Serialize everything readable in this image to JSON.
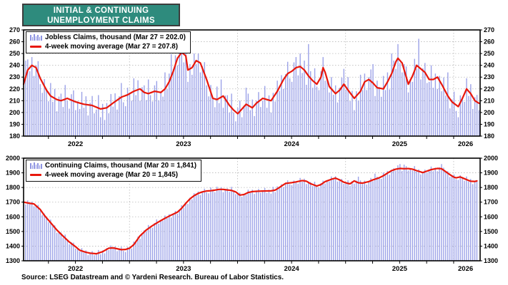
{
  "title": {
    "line1": "INITIAL & CONTINUING",
    "line2": "UNEMPLOYMENT CLAIMS"
  },
  "source": "Source: LSEG Datastream and © Yardeni Research. Bureau of Labor Statistics.",
  "colors": {
    "bar": "#9ca2e8",
    "legend_bar_icon": "#8f95e2",
    "ma_line": "#e8180c",
    "title_bg": "#2e8b7d",
    "title_text": "#ffffff",
    "grid": "#b8b8b8",
    "axis": "#000000"
  },
  "chart_data": [
    {
      "id": "initial-claims",
      "type": "bar+line",
      "legend": [
        "Jobless Claims, thousand (Mar 27 = 202.0)",
        "4-week moving average (Mar 27 = 207.8)"
      ],
      "ylim": [
        180,
        270
      ],
      "yticks": [
        180,
        190,
        200,
        210,
        220,
        230,
        240,
        250,
        260,
        270
      ],
      "x_range": [
        2022.02,
        2026.245
      ],
      "x_last": 2026.235,
      "grid_years": [
        2023,
        2024,
        2025,
        2026
      ],
      "year_ticks": [
        {
          "label": "2022",
          "t": 2022.5
        },
        {
          "label": "2023",
          "t": 2023.5
        },
        {
          "label": "2024",
          "t": 2024.5
        },
        {
          "label": "2025",
          "t": 2025.5
        },
        {
          "label": "2026",
          "t": 2026.11
        }
      ],
      "n_weeks": 220,
      "last_bar": 202.0,
      "last_ma": 207.8,
      "ma_points": [
        [
          0,
          224
        ],
        [
          2,
          236
        ],
        [
          4,
          240
        ],
        [
          6,
          238
        ],
        [
          8,
          229
        ],
        [
          11,
          219
        ],
        [
          13,
          214
        ],
        [
          16,
          211
        ],
        [
          18,
          210
        ],
        [
          21,
          212
        ],
        [
          25,
          209
        ],
        [
          29,
          207
        ],
        [
          33,
          206
        ],
        [
          37,
          203
        ],
        [
          40,
          204
        ],
        [
          43,
          208
        ],
        [
          47,
          213
        ],
        [
          50,
          215
        ],
        [
          53,
          218
        ],
        [
          56,
          220
        ],
        [
          58,
          217
        ],
        [
          60,
          216
        ],
        [
          63,
          218
        ],
        [
          66,
          217
        ],
        [
          68,
          220
        ],
        [
          70,
          226
        ],
        [
          72,
          235
        ],
        [
          74,
          246
        ],
        [
          76,
          251
        ],
        [
          78,
          248
        ],
        [
          79,
          236
        ],
        [
          81,
          238
        ],
        [
          83,
          244
        ],
        [
          85,
          242
        ],
        [
          88,
          228
        ],
        [
          91,
          212
        ],
        [
          93,
          211
        ],
        [
          96,
          214
        ],
        [
          99,
          206
        ],
        [
          101,
          202
        ],
        [
          103,
          199
        ],
        [
          105,
          203
        ],
        [
          107,
          207
        ],
        [
          110,
          204
        ],
        [
          112,
          208
        ],
        [
          115,
          212
        ],
        [
          117,
          211
        ],
        [
          119,
          210
        ],
        [
          122,
          218
        ],
        [
          125,
          228
        ],
        [
          127,
          233
        ],
        [
          129,
          235
        ],
        [
          131,
          238
        ],
        [
          133,
          239
        ],
        [
          135,
          236
        ],
        [
          137,
          231
        ],
        [
          139,
          227
        ],
        [
          141,
          224
        ],
        [
          143,
          230
        ],
        [
          144,
          238
        ],
        [
          145,
          234
        ],
        [
          147,
          222
        ],
        [
          150,
          216
        ],
        [
          152,
          219
        ],
        [
          154,
          224
        ],
        [
          156,
          219
        ],
        [
          159,
          212
        ],
        [
          162,
          218
        ],
        [
          164,
          226
        ],
        [
          166,
          228
        ],
        [
          168,
          225
        ],
        [
          170,
          221
        ],
        [
          173,
          220
        ],
        [
          175,
          226
        ],
        [
          177,
          233
        ],
        [
          179,
          243
        ],
        [
          180,
          246
        ],
        [
          182,
          242
        ],
        [
          185,
          224
        ],
        [
          187,
          231
        ],
        [
          189,
          240
        ],
        [
          191,
          237
        ],
        [
          193,
          234
        ],
        [
          195,
          228
        ],
        [
          197,
          228
        ],
        [
          199,
          230
        ],
        [
          201,
          224
        ],
        [
          204,
          214
        ],
        [
          206,
          209
        ],
        [
          209,
          205
        ],
        [
          211,
          212
        ],
        [
          213,
          220
        ],
        [
          215,
          216
        ],
        [
          217,
          210
        ],
        [
          219,
          207.8
        ]
      ],
      "noise": [
        4,
        -6,
        9,
        -3,
        7,
        -8,
        2,
        10,
        -5,
        -9,
        6,
        1,
        -7,
        11,
        -4,
        8,
        -10,
        3,
        6,
        -6,
        12,
        -2,
        -8,
        5,
        9,
        -7,
        1,
        -5,
        10,
        -3,
        7,
        -9,
        2,
        8,
        -6,
        -2,
        11,
        -7,
        4,
        -10
      ],
      "spikes": {
        "0": 20,
        "1": 14,
        "47": 12,
        "68": 14,
        "71": 19,
        "75": 9,
        "95": 15,
        "107": 14,
        "131": 9,
        "137": 27,
        "154": 13,
        "162": 14,
        "168": 16,
        "177": 17,
        "190": 24,
        "196": 12,
        "204": 20,
        "213": 9
      }
    },
    {
      "id": "continuing-claims",
      "type": "bar+line",
      "legend": [
        "Continuing Claims, thousand (Mar 20 = 1,841)",
        "4-week moving average (Mar 20 = 1,845)"
      ],
      "ylim": [
        1300,
        2000
      ],
      "yticks": [
        1300,
        1400,
        1500,
        1600,
        1700,
        1800,
        1900,
        2000
      ],
      "x_range": [
        2022.02,
        2026.245
      ],
      "x_last": 2026.215,
      "grid_years": [
        2023,
        2024,
        2025,
        2026
      ],
      "year_ticks": [
        {
          "label": "2022",
          "t": 2022.5
        },
        {
          "label": "2023",
          "t": 2023.5
        },
        {
          "label": "2024",
          "t": 2024.5
        },
        {
          "label": "2025",
          "t": 2025.5
        },
        {
          "label": "2026",
          "t": 2026.11
        }
      ],
      "n_weeks": 219,
      "last_bar": 1841,
      "last_ma": 1845,
      "ma_points": [
        [
          0,
          1700
        ],
        [
          3,
          1692
        ],
        [
          5,
          1688
        ],
        [
          8,
          1650
        ],
        [
          10,
          1610
        ],
        [
          13,
          1560
        ],
        [
          16,
          1510
        ],
        [
          19,
          1468
        ],
        [
          22,
          1428
        ],
        [
          25,
          1396
        ],
        [
          27,
          1372
        ],
        [
          30,
          1358
        ],
        [
          32,
          1352
        ],
        [
          35,
          1348
        ],
        [
          38,
          1362
        ],
        [
          41,
          1386
        ],
        [
          43,
          1388
        ],
        [
          45,
          1382
        ],
        [
          47,
          1376
        ],
        [
          49,
          1377
        ],
        [
          51,
          1386
        ],
        [
          53,
          1410
        ],
        [
          56,
          1470
        ],
        [
          59,
          1510
        ],
        [
          62,
          1540
        ],
        [
          65,
          1566
        ],
        [
          68,
          1590
        ],
        [
          71,
          1612
        ],
        [
          74,
          1632
        ],
        [
          76,
          1658
        ],
        [
          78,
          1692
        ],
        [
          80,
          1722
        ],
        [
          82,
          1744
        ],
        [
          84,
          1760
        ],
        [
          86,
          1770
        ],
        [
          88,
          1776
        ],
        [
          90,
          1778
        ],
        [
          92,
          1782
        ],
        [
          94,
          1787
        ],
        [
          96,
          1787
        ],
        [
          98,
          1783
        ],
        [
          100,
          1780
        ],
        [
          102,
          1770
        ],
        [
          104,
          1748
        ],
        [
          106,
          1752
        ],
        [
          108,
          1766
        ],
        [
          110,
          1772
        ],
        [
          113,
          1775
        ],
        [
          116,
          1776
        ],
        [
          119,
          1777
        ],
        [
          121,
          1782
        ],
        [
          123,
          1800
        ],
        [
          126,
          1828
        ],
        [
          129,
          1833
        ],
        [
          131,
          1838
        ],
        [
          134,
          1847
        ],
        [
          136,
          1843
        ],
        [
          138,
          1826
        ],
        [
          141,
          1810
        ],
        [
          143,
          1820
        ],
        [
          145,
          1840
        ],
        [
          148,
          1856
        ],
        [
          150,
          1864
        ],
        [
          152,
          1852
        ],
        [
          154,
          1836
        ],
        [
          156,
          1828
        ],
        [
          157,
          1825
        ],
        [
          159,
          1845
        ],
        [
          161,
          1832
        ],
        [
          163,
          1830
        ],
        [
          166,
          1840
        ],
        [
          168,
          1852
        ],
        [
          171,
          1866
        ],
        [
          173,
          1880
        ],
        [
          175,
          1898
        ],
        [
          177,
          1915
        ],
        [
          179,
          1925
        ],
        [
          181,
          1930
        ],
        [
          183,
          1928
        ],
        [
          185,
          1929
        ],
        [
          187,
          1925
        ],
        [
          189,
          1915
        ],
        [
          192,
          1902
        ],
        [
          194,
          1912
        ],
        [
          196,
          1922
        ],
        [
          199,
          1930
        ],
        [
          201,
          1928
        ],
        [
          203,
          1908
        ],
        [
          205,
          1888
        ],
        [
          207,
          1870
        ],
        [
          208,
          1866
        ],
        [
          210,
          1872
        ],
        [
          212,
          1860
        ],
        [
          214,
          1848
        ],
        [
          215,
          1843
        ],
        [
          217,
          1841
        ],
        [
          218,
          1845
        ]
      ],
      "noise": [
        9,
        -13,
        17,
        -6,
        13,
        -16,
        5,
        19,
        -9,
        -17,
        12,
        3,
        -14,
        21,
        -7,
        15,
        -19,
        6,
        11,
        -11,
        24,
        -5,
        -15,
        9,
        17,
        -13,
        3,
        -9,
        19,
        -6,
        13,
        -17,
        5,
        15,
        -11,
        -3,
        21,
        -13,
        8,
        -19
      ],
      "spikes": {
        "64": 25,
        "90": 22,
        "120": 25,
        "161": 42,
        "169": 38,
        "181": 30,
        "183": 28,
        "188": 26,
        "201": 32
      }
    }
  ]
}
